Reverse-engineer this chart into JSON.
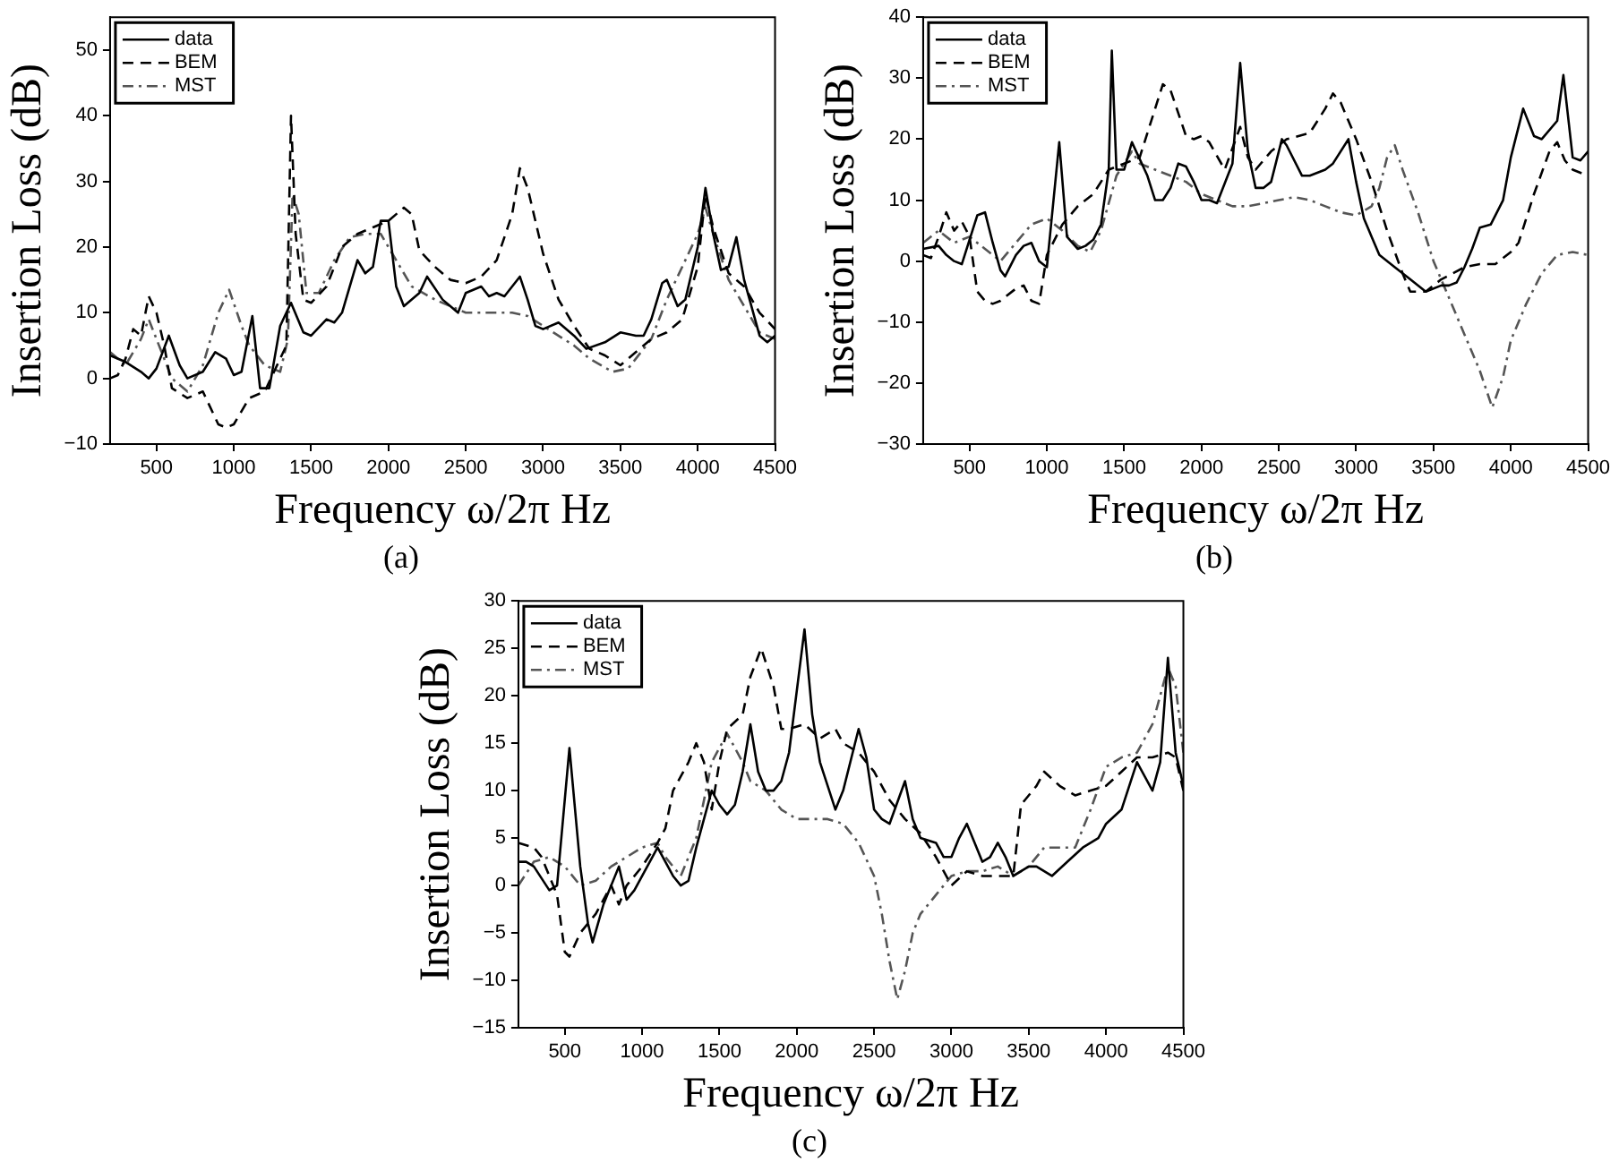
{
  "chart_data": [
    {
      "type": "line",
      "xlabel": "Frequency ω/2π Hz",
      "ylabel": "Insertion Loss (dB)",
      "annotations": [
        "(a)"
      ],
      "xlim": [
        200,
        4500
      ],
      "xticks": [
        500,
        1000,
        1500,
        2000,
        2500,
        3000,
        3500,
        4000,
        4500
      ],
      "ylim": [
        -10,
        55
      ],
      "yticks": [
        {
          "value": -10,
          "label": "−10"
        },
        0,
        10,
        20,
        30,
        40,
        50
      ],
      "grid": false,
      "legend": "top left",
      "series": [
        {
          "name": "data",
          "color": "#000000",
          "line_style": "solid",
          "x": [
            200,
            300,
            400,
            450,
            500,
            580,
            650,
            700,
            800,
            880,
            950,
            1000,
            1050,
            1120,
            1170,
            1230,
            1300,
            1370,
            1450,
            1500,
            1600,
            1650,
            1700,
            1800,
            1850,
            1900,
            1950,
            2000,
            2050,
            2100,
            2200,
            2250,
            2350,
            2450,
            2500,
            2600,
            2650,
            2700,
            2750,
            2850,
            2900,
            2950,
            3000,
            3100,
            3200,
            3280,
            3400,
            3500,
            3600,
            3650,
            3700,
            3770,
            3800,
            3870,
            3920,
            4000,
            4050,
            4100,
            4150,
            4200,
            4250,
            4300,
            4400,
            4450,
            4500
          ],
          "values": [
            3.5,
            2.5,
            1,
            0,
            1.5,
            6.5,
            2,
            0,
            1,
            4,
            3,
            0.5,
            1,
            9.5,
            -1.5,
            -1.5,
            8,
            11.5,
            7,
            6.5,
            9,
            8.5,
            10,
            18,
            16,
            17,
            24,
            24,
            14,
            11,
            13,
            15.5,
            12,
            10,
            13,
            14,
            12.5,
            13,
            12.5,
            15.5,
            12,
            8,
            7.5,
            8.5,
            6.5,
            4.5,
            5.5,
            7,
            6.5,
            6.5,
            9,
            14.5,
            15,
            11,
            12,
            20,
            29,
            22,
            16.5,
            17,
            21.5,
            15,
            6.5,
            5.5,
            6.5
          ]
        },
        {
          "name": "BEM",
          "color": "#000000",
          "line_style": "dashed",
          "x": [
            200,
            250,
            300,
            350,
            400,
            450,
            500,
            550,
            600,
            700,
            800,
            900,
            950,
            1000,
            1050,
            1100,
            1200,
            1300,
            1340,
            1370,
            1400,
            1450,
            1500,
            1600,
            1700,
            1800,
            1900,
            2000,
            2100,
            2150,
            2200,
            2300,
            2400,
            2500,
            2600,
            2700,
            2800,
            2850,
            2900,
            3000,
            3100,
            3200,
            3300,
            3400,
            3500,
            3600,
            3700,
            3800,
            3900,
            4000,
            4050,
            4100,
            4200,
            4300,
            4400,
            4500
          ],
          "values": [
            0,
            0.5,
            3,
            7.5,
            6.5,
            12.5,
            10,
            5,
            -1.5,
            -3,
            -2,
            -7,
            -7.5,
            -7,
            -5,
            -3,
            -2,
            3,
            5,
            40,
            22,
            12,
            11.5,
            14,
            20,
            22,
            23,
            24,
            26,
            25,
            19.5,
            17,
            15,
            14.5,
            15.5,
            18,
            25,
            32,
            29,
            19,
            12,
            8,
            4.5,
            3.5,
            2,
            4,
            6,
            7,
            9,
            17,
            28,
            23,
            16,
            14,
            10,
            7.5
          ]
        },
        {
          "name": "MST",
          "color": "#555555",
          "line_style": "dotted",
          "x": [
            200,
            300,
            400,
            450,
            500,
            550,
            600,
            700,
            800,
            900,
            970,
            1050,
            1100,
            1200,
            1300,
            1350,
            1380,
            1420,
            1470,
            1550,
            1650,
            1750,
            1850,
            1950,
            2050,
            2150,
            2300,
            2400,
            2500,
            2600,
            2800,
            2900,
            3000,
            3200,
            3300,
            3450,
            3550,
            3700,
            3800,
            3900,
            4000,
            4050,
            4100,
            4200,
            4300,
            4400,
            4500
          ],
          "values": [
            4,
            2,
            6,
            9,
            6,
            3,
            0,
            -2,
            2,
            10,
            13.5,
            8,
            5,
            2,
            1,
            6,
            28,
            25,
            13,
            13,
            18,
            21.5,
            22,
            22,
            18,
            14,
            12,
            11,
            10,
            10,
            10,
            9.5,
            8,
            5,
            3,
            1,
            1.5,
            6,
            12,
            17,
            22,
            26,
            22,
            15,
            11,
            7,
            6
          ]
        }
      ]
    },
    {
      "type": "line",
      "xlabel": "Frequency ω/2π Hz",
      "ylabel": "Insertion Loss (dB)",
      "annotations": [
        "(b)"
      ],
      "xlim": [
        200,
        4500
      ],
      "xticks": [
        500,
        1000,
        1500,
        2000,
        2500,
        3000,
        3500,
        4000,
        4500
      ],
      "ylim": [
        -30,
        40
      ],
      "yticks": [
        {
          "value": -30,
          "label": "−30"
        },
        {
          "value": -20,
          "label": "−20"
        },
        {
          "value": -10,
          "label": "−10"
        },
        0,
        10,
        20,
        30,
        40
      ],
      "grid": false,
      "legend": "top left",
      "series": [
        {
          "name": "data",
          "color": "#000000",
          "line_style": "solid",
          "x": [
            200,
            300,
            350,
            400,
            450,
            550,
            600,
            650,
            700,
            730,
            800,
            850,
            900,
            950,
            1000,
            1080,
            1130,
            1200,
            1250,
            1300,
            1350,
            1400,
            1420,
            1450,
            1500,
            1550,
            1650,
            1700,
            1750,
            1800,
            1850,
            1900,
            1950,
            2000,
            2050,
            2100,
            2200,
            2250,
            2300,
            2350,
            2400,
            2450,
            2520,
            2550,
            2650,
            2700,
            2800,
            2850,
            2950,
            3000,
            3050,
            3100,
            3150,
            3250,
            3350,
            3450,
            3550,
            3600,
            3650,
            3700,
            3750,
            3800,
            3870,
            3950,
            4000,
            4080,
            4150,
            4200,
            4300,
            4340,
            4400,
            4450,
            4500
          ],
          "values": [
            2,
            2.5,
            1,
            0,
            -0.5,
            7.5,
            8,
            3,
            -1.5,
            -2.5,
            1,
            2.5,
            3,
            0,
            -1,
            19.5,
            4,
            2,
            2.5,
            3.5,
            6,
            15,
            34.5,
            15,
            15,
            19.5,
            14,
            10,
            10,
            12,
            16,
            15.5,
            13,
            10,
            10,
            9.5,
            16,
            32.5,
            18,
            12,
            12,
            13,
            20,
            19,
            14,
            14,
            15,
            16,
            20,
            13,
            7,
            4,
            1,
            -1,
            -3,
            -5,
            -4,
            -4,
            -3.5,
            -1,
            2,
            5.5,
            6,
            10,
            17,
            25,
            20.5,
            20,
            23,
            30.5,
            17,
            16.5,
            18
          ]
        },
        {
          "name": "BEM",
          "color": "#000000",
          "line_style": "dashed",
          "x": [
            200,
            250,
            300,
            350,
            400,
            450,
            500,
            550,
            600,
            650,
            700,
            800,
            850,
            900,
            950,
            1000,
            1100,
            1200,
            1300,
            1400,
            1500,
            1600,
            1700,
            1750,
            1800,
            1900,
            1950,
            2000,
            2050,
            2150,
            2250,
            2300,
            2350,
            2450,
            2550,
            2700,
            2800,
            2850,
            2900,
            3000,
            3100,
            3200,
            3300,
            3350,
            3450,
            3550,
            3700,
            3800,
            3900,
            4000,
            4050,
            4150,
            4250,
            4300,
            4350,
            4400,
            4500
          ],
          "values": [
            1,
            0.5,
            4,
            8,
            5,
            6.5,
            4,
            -5,
            -6.5,
            -7,
            -6.5,
            -4.5,
            -4,
            -6.5,
            -7,
            1,
            6,
            9,
            11,
            15,
            16,
            17,
            25,
            29,
            28,
            20.5,
            20,
            20.5,
            19.5,
            15,
            22,
            17,
            15,
            18,
            20,
            21,
            25,
            27.5,
            26,
            20,
            13,
            5,
            -2,
            -5,
            -5,
            -3,
            -1,
            -0.5,
            -0.5,
            1.5,
            3,
            11,
            18,
            19.5,
            16.5,
            15,
            14
          ]
        },
        {
          "name": "MST",
          "color": "#555555",
          "line_style": "dotted",
          "x": [
            200,
            300,
            400,
            500,
            600,
            700,
            800,
            900,
            1000,
            1050,
            1100,
            1200,
            1280,
            1350,
            1450,
            1500,
            1550,
            1600,
            1700,
            1800,
            1900,
            2000,
            2100,
            2200,
            2300,
            2400,
            2500,
            2600,
            2700,
            2800,
            2900,
            3000,
            3100,
            3150,
            3200,
            3250,
            3300,
            3400,
            3500,
            3600,
            3700,
            3800,
            3880,
            3950,
            4000,
            4100,
            4200,
            4300,
            4400,
            4500
          ],
          "values": [
            3,
            5,
            3,
            4,
            2,
            0,
            3,
            6,
            7,
            6,
            5,
            2.5,
            1.5,
            5,
            14,
            16,
            18,
            16,
            15,
            14,
            13,
            11,
            10,
            9,
            9,
            9.5,
            10,
            10.5,
            10,
            9,
            8,
            7.5,
            9,
            12,
            17,
            19,
            15,
            8,
            0,
            -6,
            -12,
            -18,
            -24,
            -19,
            -13,
            -7,
            -2,
            1,
            1.5,
            1
          ]
        }
      ]
    },
    {
      "type": "line",
      "xlabel": "Frequency ω/2π Hz",
      "ylabel": "Insertion Loss (dB)",
      "annotations": [
        "(c)"
      ],
      "xlim": [
        200,
        4500
      ],
      "xticks": [
        500,
        1000,
        1500,
        2000,
        2500,
        3000,
        3500,
        4000,
        4500
      ],
      "ylim": [
        -15,
        30
      ],
      "yticks": [
        {
          "value": -15,
          "label": "−15"
        },
        {
          "value": -10,
          "label": "−10"
        },
        {
          "value": -5,
          "label": "−5"
        },
        0,
        5,
        10,
        15,
        20,
        25,
        30
      ],
      "grid": false,
      "legend": "top left",
      "series": [
        {
          "name": "data",
          "color": "#000000",
          "line_style": "solid",
          "x": [
            200,
            250,
            300,
            400,
            450,
            530,
            600,
            650,
            680,
            750,
            850,
            900,
            950,
            1100,
            1200,
            1250,
            1300,
            1350,
            1400,
            1450,
            1500,
            1550,
            1600,
            1650,
            1700,
            1750,
            1800,
            1850,
            1900,
            1950,
            2050,
            2100,
            2150,
            2250,
            2300,
            2400,
            2450,
            2500,
            2550,
            2600,
            2700,
            2750,
            2800,
            2900,
            2950,
            3000,
            3050,
            3100,
            3200,
            3250,
            3300,
            3350,
            3400,
            3500,
            3550,
            3650,
            3750,
            3850,
            3950,
            4000,
            4100,
            4200,
            4300,
            4350,
            4400,
            4450,
            4500
          ],
          "values": [
            2.5,
            2.5,
            2,
            -0.5,
            0,
            14.5,
            2,
            -4,
            -6,
            -2,
            2,
            -1.5,
            -0.5,
            4,
            1,
            0,
            0.5,
            4,
            7,
            10,
            8.5,
            7.5,
            8.5,
            12,
            17,
            12,
            10,
            10,
            11,
            14,
            27,
            18,
            13,
            8,
            10,
            16.5,
            13.5,
            8,
            7,
            6.5,
            11,
            7,
            5,
            4.5,
            3,
            3,
            5,
            6.5,
            2.5,
            3,
            4.5,
            3,
            1,
            2,
            2,
            1,
            2.5,
            4,
            5,
            6.5,
            8,
            13,
            10,
            13,
            24,
            14,
            10.5
          ]
        },
        {
          "name": "BEM",
          "color": "#000000",
          "line_style": "dashed",
          "x": [
            200,
            300,
            350,
            400,
            450,
            500,
            530,
            600,
            700,
            800,
            850,
            900,
            1000,
            1100,
            1150,
            1200,
            1300,
            1350,
            1400,
            1450,
            1500,
            1550,
            1650,
            1700,
            1770,
            1850,
            1900,
            1950,
            2050,
            2150,
            2250,
            2300,
            2400,
            2500,
            2600,
            2700,
            2800,
            2900,
            3000,
            3100,
            3200,
            3300,
            3400,
            3450,
            3550,
            3600,
            3700,
            3800,
            3900,
            4000,
            4100,
            4200,
            4300,
            4400,
            4450,
            4500
          ],
          "values": [
            4.5,
            4,
            3,
            1,
            -1,
            -7,
            -7.5,
            -5,
            -3,
            0,
            -2,
            0,
            2,
            4.5,
            6,
            10,
            13,
            15,
            13,
            8,
            13,
            16.5,
            18,
            22,
            25,
            21,
            16.5,
            16.5,
            17,
            15.5,
            16.5,
            15,
            14,
            12,
            9,
            7,
            5.5,
            3,
            0,
            1.5,
            1,
            1,
            1,
            8.5,
            10.5,
            12,
            10.5,
            9.5,
            10,
            10.5,
            12,
            13.5,
            13.5,
            14,
            13.5,
            10
          ]
        },
        {
          "name": "MST",
          "color": "#555555",
          "line_style": "dotted",
          "x": [
            200,
            300,
            400,
            500,
            600,
            700,
            800,
            900,
            1000,
            1100,
            1150,
            1250,
            1350,
            1450,
            1550,
            1650,
            1700,
            1800,
            1900,
            2000,
            2100,
            2200,
            2300,
            2400,
            2500,
            2550,
            2600,
            2650,
            2700,
            2750,
            2800,
            2900,
            3000,
            3100,
            3200,
            3300,
            3400,
            3500,
            3600,
            3700,
            3800,
            3900,
            4000,
            4100,
            4200,
            4300,
            4400,
            4450,
            4500
          ],
          "values": [
            0,
            2.5,
            3,
            2,
            0,
            0.5,
            2,
            3,
            4,
            4.5,
            3,
            1,
            5,
            13,
            16,
            13,
            11,
            10,
            8,
            7,
            7,
            7,
            6.5,
            4.5,
            1,
            -3,
            -8,
            -12,
            -9,
            -5,
            -3,
            -1,
            1,
            1.5,
            1.5,
            2,
            1,
            2,
            4,
            4,
            4,
            8,
            12.5,
            13.5,
            14,
            17,
            23,
            21,
            14
          ]
        }
      ]
    }
  ]
}
